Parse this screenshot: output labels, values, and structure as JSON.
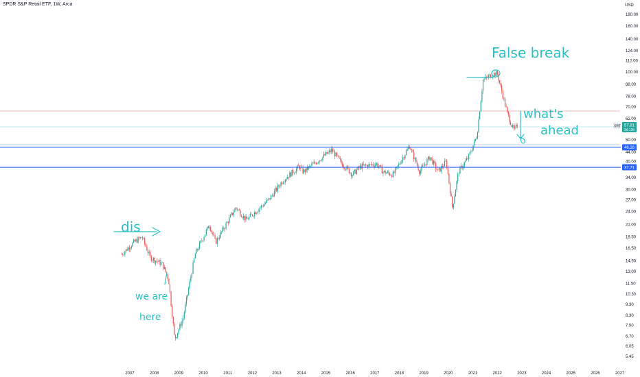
{
  "header": {
    "title": "SPDR S&P Retail ETF, 1W, Arca",
    "currency": "USD"
  },
  "colors": {
    "up": "#26a69a",
    "down": "#ef5350",
    "level_line": "#2962ff",
    "annotation": "#2cc2c5",
    "red_line": "#f4a3a3",
    "price_badge": "#26a69a",
    "level_badge": "#2962ff"
  },
  "chart_data": {
    "type": "line",
    "scale": "log",
    "x_ticks": [
      "2007",
      "2008",
      "2009",
      "2010",
      "2011",
      "2012",
      "2013",
      "2014",
      "2015",
      "2016",
      "2017",
      "2018",
      "2019",
      "2020",
      "2021",
      "2022",
      "2023",
      "2024",
      "2025",
      "2026",
      "2027"
    ],
    "y_ticks": [
      "180.00",
      "160.00",
      "140.00",
      "124.00",
      "112.00",
      "100.00",
      "88.00",
      "78.00",
      "70.00",
      "62.00",
      "56.00",
      "50.00",
      "44.00",
      "40.00",
      "34.00",
      "30.00",
      "27.00",
      "24.00",
      "21.00",
      "18.50",
      "16.50",
      "14.50",
      "13.00",
      "11.50",
      "10.30",
      "9.30",
      "8.30",
      "7.50",
      "6.70",
      "6.05",
      "5.45"
    ],
    "series": [
      {
        "x": [
          "2006-09",
          "2007-03",
          "2007-07",
          "2007-11",
          "2008-05",
          "2008-08",
          "2008-11",
          "2009-03",
          "2009-09",
          "2010-04",
          "2010-07",
          "2011-05",
          "2011-10",
          "2012-09",
          "2013-04",
          "2013-12",
          "2014-02",
          "2015-04",
          "2015-08",
          "2016-02",
          "2016-06",
          "2017-02",
          "2017-05",
          "2017-10",
          "2018-06",
          "2018-11",
          "2019-04",
          "2019-08",
          "2019-12",
          "2020-03",
          "2020-06",
          "2020-11",
          "2021-03",
          "2021-06",
          "2021-11",
          "2022-01",
          "2022-06",
          "2022-09",
          "2022-11"
        ],
        "close": [
          15.5,
          17.5,
          18.5,
          15.0,
          14.0,
          12.0,
          6.5,
          8.0,
          15.5,
          21.0,
          17.5,
          25.0,
          22.0,
          27.0,
          33.0,
          38.0,
          36.0,
          45.0,
          40.0,
          35.0,
          38.0,
          39.0,
          36.0,
          35.0,
          47.0,
          36.0,
          42.0,
          36.0,
          40.0,
          25.0,
          36.0,
          42.0,
          52.0,
          92.0,
          98.0,
          98.0,
          65.0,
          55.0,
          58.0
        ]
      }
    ],
    "levels": [
      {
        "price": 46.26,
        "label": "46.26"
      },
      {
        "price": 37.71,
        "label": "37.71"
      }
    ],
    "current": {
      "symbol": "XRT",
      "price": "57.81",
      "countdown": "3d 13h"
    }
  },
  "annotations": {
    "false_break": "False break",
    "whats": "what's",
    "ahead": "ahead",
    "dis": "dis",
    "we_are": "we are",
    "here": "here"
  }
}
